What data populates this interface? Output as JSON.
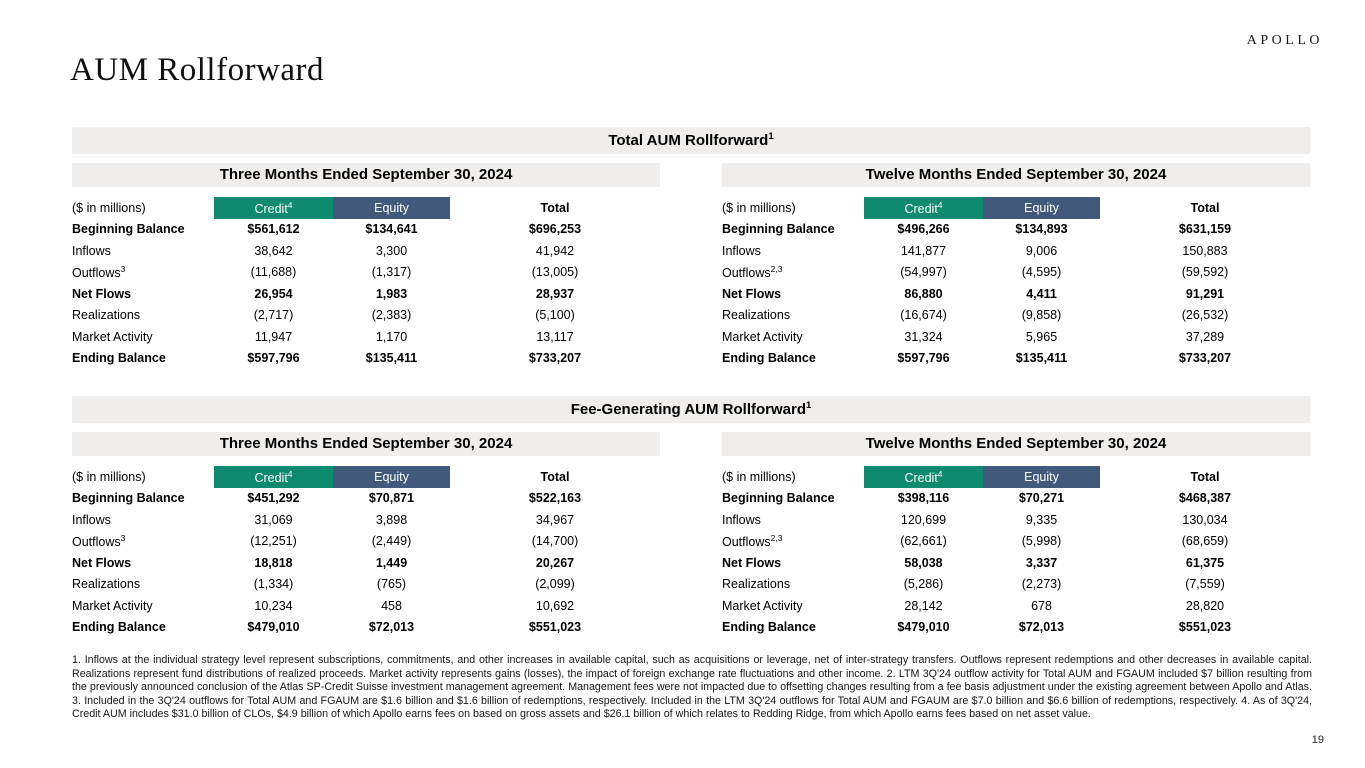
{
  "header": {
    "logo": "APOLLO",
    "title": "AUM Rollforward"
  },
  "page_number": "19",
  "colors": {
    "credit_header_bg": "#0e8a6e",
    "equity_header_bg": "#41597b",
    "bar_bg": "#efeeec"
  },
  "unit_label": "($ in millions)",
  "sections": [
    {
      "title": "Total AUM Rollforward",
      "title_sup": "1",
      "tables": [
        {
          "period": "Three Months Ended September 30, 2024",
          "columns": {
            "credit": "Credit",
            "credit_sup": "4",
            "equity": "Equity",
            "total": "Total"
          },
          "rows": [
            {
              "label": "Beginning Balance",
              "label_sup": "",
              "bold": true,
              "values": [
                "$561,612",
                "$134,641",
                "$696,253"
              ]
            },
            {
              "label": "Inflows",
              "label_sup": "",
              "bold": false,
              "values": [
                "38,642",
                "3,300",
                "41,942"
              ]
            },
            {
              "label": "Outflows",
              "label_sup": "3",
              "bold": false,
              "values": [
                "(11,688)",
                "(1,317)",
                "(13,005)"
              ]
            },
            {
              "label": "Net Flows",
              "label_sup": "",
              "bold": true,
              "values": [
                "26,954",
                "1,983",
                "28,937"
              ]
            },
            {
              "label": "Realizations",
              "label_sup": "",
              "bold": false,
              "values": [
                "(2,717)",
                "(2,383)",
                "(5,100)"
              ]
            },
            {
              "label": "Market Activity",
              "label_sup": "",
              "bold": false,
              "values": [
                "11,947",
                "1,170",
                "13,117"
              ]
            },
            {
              "label": "Ending Balance",
              "label_sup": "",
              "bold": true,
              "values": [
                "$597,796",
                "$135,411",
                "$733,207"
              ]
            }
          ]
        },
        {
          "period": "Twelve Months Ended September 30, 2024",
          "columns": {
            "credit": "Credit",
            "credit_sup": "4",
            "equity": "Equity",
            "total": "Total"
          },
          "rows": [
            {
              "label": "Beginning Balance",
              "label_sup": "",
              "bold": true,
              "values": [
                "$496,266",
                "$134,893",
                "$631,159"
              ]
            },
            {
              "label": "Inflows",
              "label_sup": "",
              "bold": false,
              "values": [
                "141,877",
                "9,006",
                "150,883"
              ]
            },
            {
              "label": "Outflows",
              "label_sup": "2,3",
              "bold": false,
              "values": [
                "(54,997)",
                "(4,595)",
                "(59,592)"
              ]
            },
            {
              "label": "Net Flows",
              "label_sup": "",
              "bold": true,
              "values": [
                "86,880",
                "4,411",
                "91,291"
              ]
            },
            {
              "label": "Realizations",
              "label_sup": "",
              "bold": false,
              "values": [
                "(16,674)",
                "(9,858)",
                "(26,532)"
              ]
            },
            {
              "label": "Market Activity",
              "label_sup": "",
              "bold": false,
              "values": [
                "31,324",
                "5,965",
                "37,289"
              ]
            },
            {
              "label": "Ending Balance",
              "label_sup": "",
              "bold": true,
              "values": [
                "$597,796",
                "$135,411",
                "$733,207"
              ]
            }
          ]
        }
      ]
    },
    {
      "title": "Fee-Generating AUM Rollforward",
      "title_sup": "1",
      "tables": [
        {
          "period": "Three Months Ended September 30, 2024",
          "columns": {
            "credit": "Credit",
            "credit_sup": "4",
            "equity": "Equity",
            "total": "Total"
          },
          "rows": [
            {
              "label": "Beginning Balance",
              "label_sup": "",
              "bold": true,
              "values": [
                "$451,292",
                "$70,871",
                "$522,163"
              ]
            },
            {
              "label": "Inflows",
              "label_sup": "",
              "bold": false,
              "values": [
                "31,069",
                "3,898",
                "34,967"
              ]
            },
            {
              "label": "Outflows",
              "label_sup": "3",
              "bold": false,
              "values": [
                "(12,251)",
                "(2,449)",
                "(14,700)"
              ]
            },
            {
              "label": "Net Flows",
              "label_sup": "",
              "bold": true,
              "values": [
                "18,818",
                "1,449",
                "20,267"
              ]
            },
            {
              "label": "Realizations",
              "label_sup": "",
              "bold": false,
              "values": [
                "(1,334)",
                "(765)",
                "(2,099)"
              ]
            },
            {
              "label": "Market Activity",
              "label_sup": "",
              "bold": false,
              "values": [
                "10,234",
                "458",
                "10,692"
              ]
            },
            {
              "label": "Ending Balance",
              "label_sup": "",
              "bold": true,
              "values": [
                "$479,010",
                "$72,013",
                "$551,023"
              ]
            }
          ]
        },
        {
          "period": "Twelve Months Ended September 30, 2024",
          "columns": {
            "credit": "Credit",
            "credit_sup": "4",
            "equity": "Equity",
            "total": "Total"
          },
          "rows": [
            {
              "label": "Beginning Balance",
              "label_sup": "",
              "bold": true,
              "values": [
                "$398,116",
                "$70,271",
                "$468,387"
              ]
            },
            {
              "label": "Inflows",
              "label_sup": "",
              "bold": false,
              "values": [
                "120,699",
                "9,335",
                "130,034"
              ]
            },
            {
              "label": "Outflows",
              "label_sup": "2,3",
              "bold": false,
              "values": [
                "(62,661)",
                "(5,998)",
                "(68,659)"
              ]
            },
            {
              "label": "Net Flows",
              "label_sup": "",
              "bold": true,
              "values": [
                "58,038",
                "3,337",
                "61,375"
              ]
            },
            {
              "label": "Realizations",
              "label_sup": "",
              "bold": false,
              "values": [
                "(5,286)",
                "(2,273)",
                "(7,559)"
              ]
            },
            {
              "label": "Market Activity",
              "label_sup": "",
              "bold": false,
              "values": [
                "28,142",
                "678",
                "28,820"
              ]
            },
            {
              "label": "Ending Balance",
              "label_sup": "",
              "bold": true,
              "values": [
                "$479,010",
                "$72,013",
                "$551,023"
              ]
            }
          ]
        }
      ]
    }
  ],
  "footnote": "1. Inflows at the individual strategy level represent subscriptions, commitments, and other increases in available capital, such as acquisitions or leverage, net of inter-strategy transfers. Outflows represent redemptions and other decreases in available capital. Realizations represent fund distributions of realized proceeds. Market activity represents gains (losses), the impact of foreign exchange rate fluctuations and other income. 2. LTM 3Q'24 outflow activity for Total AUM and FGAUM included $7 billion resulting from the previously announced conclusion of the Atlas SP-Credit Suisse investment management agreement. Management fees were not impacted due to offsetting changes resulting from a fee basis adjustment under the existing agreement between Apollo and Atlas. 3. Included in the 3Q'24 outflows for Total AUM and FGAUM are $1.6 billion and $1.6 billion of redemptions, respectively. Included in the LTM 3Q'24 outflows for Total AUM and FGAUM are $7.0 billion and $6.6 billion of redemptions, respectively. 4. As of 3Q'24, Credit AUM includes $31.0 billion of CLOs, $4.9 billion of which Apollo earns fees on based on gross assets and $26.1 billion of which relates to Redding Ridge, from which Apollo earns fees based on net asset value."
}
